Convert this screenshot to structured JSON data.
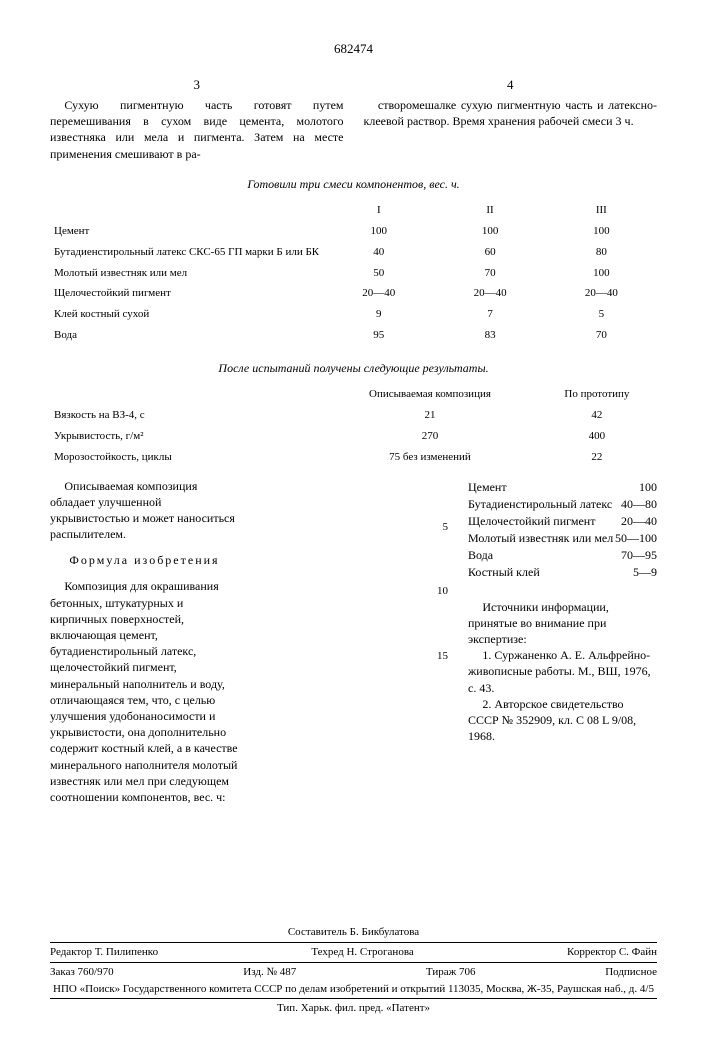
{
  "doc_number": "682474",
  "cols": {
    "left_num": "3",
    "right_num": "4",
    "left_text": "Сухую пигментную часть готовят путем перемешивания в сухом виде цемента, молотого известняка или мела и пигмента. Затем на месте применения смешивают в ра-",
    "right_text": "створомешалке сухую пигментную часть и латексно-клеевой раствор. Время хранения рабочей смеси 3 ч."
  },
  "table1": {
    "title": "Готовили три смеси компонентов, вес. ч.",
    "headers": [
      "",
      "I",
      "II",
      "III"
    ],
    "rows": [
      [
        "Цемент",
        "100",
        "100",
        "100"
      ],
      [
        "Бутадиенстирольный латекс СКС-65 ГП марки Б или БК",
        "40",
        "60",
        "80"
      ],
      [
        "Молотый известняк или мел",
        "50",
        "70",
        "100"
      ],
      [
        "Щелочестойкий пигмент",
        "20—40",
        "20—40",
        "20—40"
      ],
      [
        "Клей костный сухой",
        "9",
        "7",
        "5"
      ],
      [
        "Вода",
        "95",
        "83",
        "70"
      ]
    ]
  },
  "table2": {
    "title": "После испытаний получены следующие результаты.",
    "headers": [
      "",
      "Описываемая композиция",
      "По прототипу"
    ],
    "rows": [
      [
        "Вязкость на ВЗ-4, с",
        "21",
        "42"
      ],
      [
        "Укрывистость, г/м²",
        "270",
        "400"
      ],
      [
        "Морозостойкость, циклы",
        "75 без изменений",
        "22"
      ]
    ]
  },
  "lower": {
    "left1": "Описываемая композиция обладает улучшенной укрывистостью и может наноситься распылителем.",
    "formula_title": "Формула изобретения",
    "left2": "Композиция для окрашивания бетонных, штукатурных и кирпичных поверхностей, включающая цемент, бутадиенстирольный латекс, щелочестойкий пигмент, минеральный наполнитель и воду, отличающаяся тем, что, с целью улучшения удобонаносимости и укрывистости, она дополнительно содержит костный клей, а в качестве минерального наполнителя молотый известняк или мел при следующем соотношении компонентов, вес. ч:",
    "comp": [
      [
        "Цемент",
        "100"
      ],
      [
        "Бутадиенстирольный латекс",
        "40—80"
      ],
      [
        "Щелочестойкий пигмент",
        "20—40"
      ],
      [
        "Молотый известняк или мел",
        "50—100"
      ],
      [
        "Вода",
        "70—95"
      ],
      [
        "Костный клей",
        "5—9"
      ]
    ],
    "refs_title": "Источники информации, принятые во внимание при экспертизе:",
    "ref1": "1. Суржаненко А. Е. Альфрейно-живописные работы. М., ВШ, 1976, с. 43.",
    "ref2": "2. Авторское свидетельство СССР № 352909, кл. C 08 L 9/08, 1968."
  },
  "line_nums": [
    "5",
    "10",
    "15"
  ],
  "footer": {
    "compiler": "Составитель Б. Бикбулатова",
    "editor": "Редактор Т. Пилипенко",
    "tech": "Техред Н. Строганова",
    "corrector": "Корректор С. Файн",
    "order": "Заказ 760/970",
    "izd": "Изд. № 487",
    "tirazh": "Тираж 706",
    "sign": "Подписное",
    "org": "НПО «Поиск» Государственного комитета СССР по делам изобретений и открытий 113035, Москва, Ж-35, Раушская наб., д. 4/5",
    "print": "Тип. Харьк. фил. пред. «Патент»"
  }
}
